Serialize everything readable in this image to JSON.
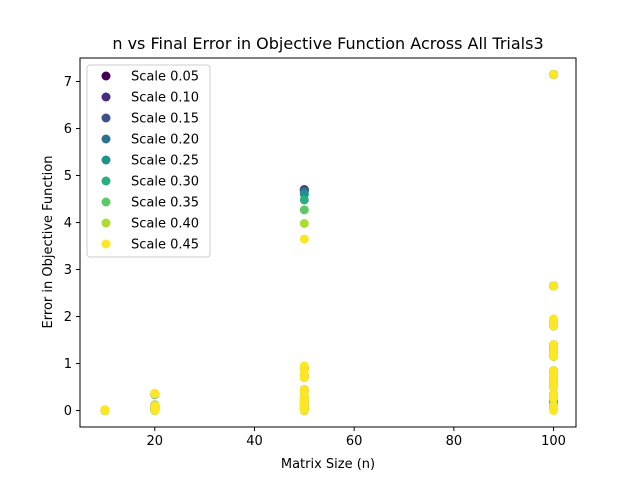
{
  "chart_data": {
    "type": "scatter",
    "title": "n vs Final Error in Objective Function Across All Trials3",
    "xlabel": "Matrix Size (n)",
    "ylabel": "Error in Objective Function",
    "xlim": [
      5,
      104.5
    ],
    "ylim": [
      -0.35,
      7.5
    ],
    "xticks": [
      "20",
      "40",
      "60",
      "80",
      "100"
    ],
    "yticks": [
      "0",
      "1",
      "2",
      "3",
      "4",
      "5",
      "6",
      "7"
    ],
    "grid": false,
    "legend_position": "upper-left",
    "series": [
      {
        "name": "Scale 0.05",
        "color": "#440154",
        "points": [
          [
            10,
            0.0
          ],
          [
            20,
            0.02
          ],
          [
            20,
            0.1
          ],
          [
            50,
            4.7
          ],
          [
            50,
            0.9
          ],
          [
            50,
            0.1
          ],
          [
            100,
            7.15
          ],
          [
            100,
            2.65
          ],
          [
            100,
            1.9
          ],
          [
            100,
            1.3
          ],
          [
            100,
            0.8
          ],
          [
            100,
            0.3
          ],
          [
            100,
            0.05
          ]
        ]
      },
      {
        "name": "Scale 0.10",
        "color": "#472d7b",
        "points": [
          [
            10,
            0.0
          ],
          [
            20,
            0.05
          ],
          [
            20,
            0.35
          ],
          [
            50,
            4.69
          ],
          [
            50,
            0.75
          ],
          [
            50,
            0.2
          ],
          [
            100,
            7.15
          ],
          [
            100,
            2.65
          ],
          [
            100,
            1.85
          ],
          [
            100,
            1.2
          ],
          [
            100,
            0.6
          ],
          [
            100,
            0.2
          ]
        ]
      },
      {
        "name": "Scale 0.15",
        "color": "#3b528b",
        "points": [
          [
            10,
            0.0
          ],
          [
            20,
            0.0
          ],
          [
            20,
            0.12
          ],
          [
            50,
            4.68
          ],
          [
            50,
            0.45
          ],
          [
            50,
            0.05
          ],
          [
            100,
            7.15
          ],
          [
            100,
            2.65
          ],
          [
            100,
            1.8
          ],
          [
            100,
            1.4
          ],
          [
            100,
            0.5
          ],
          [
            100,
            0.1
          ]
        ]
      },
      {
        "name": "Scale 0.20",
        "color": "#2c728e",
        "points": [
          [
            10,
            0.0
          ],
          [
            20,
            0.03
          ],
          [
            20,
            0.36
          ],
          [
            50,
            4.65
          ],
          [
            50,
            0.3
          ],
          [
            50,
            0.0
          ],
          [
            100,
            7.15
          ],
          [
            100,
            2.65
          ],
          [
            100,
            1.9
          ],
          [
            100,
            1.15
          ],
          [
            100,
            0.85
          ],
          [
            100,
            0.35
          ]
        ]
      },
      {
        "name": "Scale 0.25",
        "color": "#21918c",
        "points": [
          [
            10,
            0.0
          ],
          [
            20,
            0.08
          ],
          [
            20,
            0.34
          ],
          [
            50,
            4.6
          ],
          [
            50,
            0.15
          ],
          [
            50,
            0.25
          ],
          [
            100,
            7.15
          ],
          [
            100,
            2.65
          ],
          [
            100,
            1.85
          ],
          [
            100,
            1.35
          ],
          [
            100,
            0.7
          ],
          [
            100,
            0.05
          ]
        ]
      },
      {
        "name": "Scale 0.30",
        "color": "#28ae80",
        "points": [
          [
            10,
            0.0
          ],
          [
            20,
            0.0
          ],
          [
            20,
            0.1
          ],
          [
            50,
            4.48
          ],
          [
            50,
            0.4
          ],
          [
            50,
            0.05
          ],
          [
            100,
            7.15
          ],
          [
            100,
            2.65
          ],
          [
            100,
            1.8
          ],
          [
            100,
            1.25
          ],
          [
            100,
            0.55
          ],
          [
            100,
            0.3
          ]
        ]
      },
      {
        "name": "Scale 0.35",
        "color": "#5ec962",
        "points": [
          [
            10,
            0.0
          ],
          [
            20,
            0.05
          ],
          [
            20,
            0.36
          ],
          [
            50,
            4.27
          ],
          [
            50,
            0.7
          ],
          [
            50,
            0.1
          ],
          [
            100,
            7.15
          ],
          [
            100,
            2.65
          ],
          [
            100,
            1.9
          ],
          [
            100,
            1.2
          ],
          [
            100,
            0.8
          ],
          [
            100,
            0.15
          ]
        ]
      },
      {
        "name": "Scale 0.40",
        "color": "#addc30",
        "points": [
          [
            10,
            0.0
          ],
          [
            20,
            0.02
          ],
          [
            20,
            0.12
          ],
          [
            50,
            3.98
          ],
          [
            50,
            0.9
          ],
          [
            50,
            0.2
          ],
          [
            100,
            7.15
          ],
          [
            100,
            2.65
          ],
          [
            100,
            1.85
          ],
          [
            100,
            1.35
          ],
          [
            100,
            0.65
          ],
          [
            100,
            0.05
          ]
        ]
      },
      {
        "name": "Scale 0.45",
        "color": "#fde725",
        "points": [
          [
            10,
            0.0
          ],
          [
            10,
            0.02
          ],
          [
            20,
            0.0
          ],
          [
            20,
            0.05
          ],
          [
            20,
            0.1
          ],
          [
            20,
            0.35
          ],
          [
            20,
            0.37
          ],
          [
            50,
            3.65
          ],
          [
            50,
            0.95
          ],
          [
            50,
            0.85
          ],
          [
            50,
            0.75
          ],
          [
            50,
            0.7
          ],
          [
            50,
            0.45
          ],
          [
            50,
            0.4
          ],
          [
            50,
            0.3
          ],
          [
            50,
            0.25
          ],
          [
            50,
            0.2
          ],
          [
            50,
            0.15
          ],
          [
            50,
            0.1
          ],
          [
            50,
            0.05
          ],
          [
            50,
            0.0
          ],
          [
            100,
            7.15
          ],
          [
            100,
            2.65
          ],
          [
            100,
            1.95
          ],
          [
            100,
            1.9
          ],
          [
            100,
            1.85
          ],
          [
            100,
            1.8
          ],
          [
            100,
            1.4
          ],
          [
            100,
            1.3
          ],
          [
            100,
            1.25
          ],
          [
            100,
            1.2
          ],
          [
            100,
            1.15
          ],
          [
            100,
            0.85
          ],
          [
            100,
            0.8
          ],
          [
            100,
            0.7
          ],
          [
            100,
            0.6
          ],
          [
            100,
            0.55
          ],
          [
            100,
            0.5
          ],
          [
            100,
            0.35
          ],
          [
            100,
            0.3
          ],
          [
            100,
            0.25
          ],
          [
            100,
            0.1
          ],
          [
            100,
            0.05
          ],
          [
            100,
            0.0
          ]
        ]
      }
    ]
  }
}
